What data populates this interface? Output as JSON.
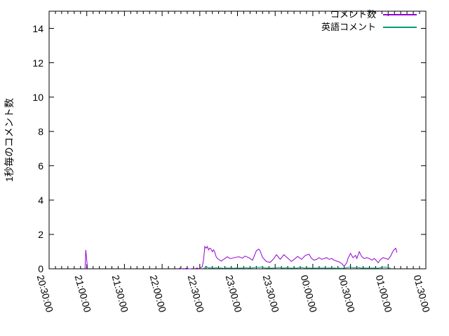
{
  "chart_data": {
    "type": "line",
    "title": "",
    "xlabel": "",
    "ylabel": "1秒毎のコメント数",
    "ylim": [
      0,
      15
    ],
    "y_tick_labels": [
      "0",
      "2",
      "4",
      "6",
      "8",
      "10",
      "12",
      "14"
    ],
    "y_tick_step": 2,
    "x_tick_labels": [
      "20:30:00",
      "21:00:00",
      "21:30:00",
      "22:00:00",
      "22:30:00",
      "23:00:00",
      "23:30:00",
      "00:00:00",
      "00:30:00",
      "01:00:00",
      "01:30:00"
    ],
    "x_axis": {
      "total_minutes": 300,
      "major_step_minutes": 30,
      "minor_step_minutes": 5,
      "start_label": "20:30:00",
      "end_label": "01:30:00"
    },
    "grid": false,
    "legend": {
      "position": "top-right",
      "entries": [
        "コメント数",
        "英語コメント"
      ]
    },
    "axis_color": "#000000",
    "background_color": "#ffffff",
    "series": [
      {
        "name": "コメント数",
        "color": "#9400d3",
        "x_unit": "minutes_since_20:30",
        "segments": [
          [
            [
              28.6,
              0
            ],
            [
              29.2,
              1.1
            ],
            [
              30.6,
              0
            ]
          ],
          [
            [
              103,
              0
            ],
            [
              104,
              0.05
            ],
            [
              105,
              0
            ],
            [
              106,
              0
            ]
          ],
          [
            [
              108,
              0
            ],
            [
              110,
              0.05
            ],
            [
              111,
              0
            ],
            [
              113,
              0
            ]
          ],
          [
            [
              116,
              0
            ],
            [
              118,
              0.05
            ],
            [
              119,
              0
            ],
            [
              120,
              0.05
            ],
            [
              121,
              0.08
            ],
            [
              122,
              0.12
            ],
            [
              123,
              0.55
            ],
            [
              124,
              1.3
            ],
            [
              125,
              1.2
            ],
            [
              126,
              1.3
            ],
            [
              127,
              1.1
            ],
            [
              128,
              1.2
            ],
            [
              129,
              1.15
            ],
            [
              130,
              1.0
            ],
            [
              131,
              1.1
            ],
            [
              132,
              0.95
            ],
            [
              133,
              0.7
            ],
            [
              134,
              0.6
            ],
            [
              135,
              0.55
            ],
            [
              136,
              0.5
            ],
            [
              137,
              0.45
            ],
            [
              138,
              0.5
            ],
            [
              139,
              0.55
            ],
            [
              140,
              0.6
            ],
            [
              141,
              0.65
            ],
            [
              142,
              0.7
            ],
            [
              143,
              0.65
            ],
            [
              144,
              0.6
            ],
            [
              145,
              0.6
            ],
            [
              148,
              0.66
            ],
            [
              151,
              0.7
            ],
            [
              154,
              0.62
            ],
            [
              156,
              0.74
            ],
            [
              159,
              0.65
            ],
            [
              162,
              0.5
            ],
            [
              165,
              1.05
            ],
            [
              167,
              1.15
            ],
            [
              168,
              1.05
            ],
            [
              170,
              0.66
            ],
            [
              173,
              0.43
            ],
            [
              176,
              0.37
            ],
            [
              179,
              0.6
            ],
            [
              181,
              0.82
            ],
            [
              184,
              0.55
            ],
            [
              187,
              0.82
            ],
            [
              190,
              0.62
            ],
            [
              193,
              0.43
            ],
            [
              196,
              0.6
            ],
            [
              198,
              0.72
            ],
            [
              201,
              0.55
            ],
            [
              204,
              0.78
            ],
            [
              207,
              0.85
            ],
            [
              209,
              0.6
            ],
            [
              211,
              0.5
            ],
            [
              213,
              0.55
            ],
            [
              215,
              0.65
            ],
            [
              217,
              0.55
            ],
            [
              219,
              0.6
            ],
            [
              221,
              0.65
            ],
            [
              223,
              0.55
            ],
            [
              225,
              0.6
            ],
            [
              227,
              0.5
            ],
            [
              229,
              0.45
            ],
            [
              231,
              0.4
            ],
            [
              233,
              0.3
            ],
            [
              235,
              0.15
            ],
            [
              237,
              0.35
            ],
            [
              238,
              0.6
            ],
            [
              240,
              0.9
            ],
            [
              242,
              0.65
            ],
            [
              244,
              0.78
            ],
            [
              245,
              0.6
            ],
            [
              247,
              1.0
            ],
            [
              249,
              0.7
            ],
            [
              251,
              0.6
            ],
            [
              253,
              0.65
            ],
            [
              255,
              0.6
            ],
            [
              257,
              0.5
            ],
            [
              259,
              0.6
            ],
            [
              261,
              0.45
            ],
            [
              262,
              0.35
            ],
            [
              264,
              0.55
            ],
            [
              266,
              0.65
            ],
            [
              268,
              0.6
            ],
            [
              270,
              0.55
            ],
            [
              272,
              0.75
            ],
            [
              274,
              1.05
            ],
            [
              276,
              1.2
            ],
            [
              277,
              0.95
            ]
          ]
        ]
      },
      {
        "name": "英語コメント",
        "color": "#009e73",
        "x_unit": "minutes_since_20:30",
        "segments": [
          [
            [
              123,
              0.02
            ],
            [
              124,
              0.08
            ],
            [
              125,
              0.15
            ],
            [
              126,
              0.1
            ],
            [
              127,
              0.05
            ],
            [
              129,
              0.06
            ],
            [
              131,
              0.04
            ],
            [
              133,
              0.06
            ],
            [
              135,
              0.04
            ],
            [
              137,
              0.05
            ],
            [
              139,
              0.03
            ],
            [
              141,
              0.05
            ],
            [
              143,
              0.04
            ],
            [
              145,
              0.05
            ],
            [
              147,
              0.03
            ],
            [
              149,
              0.05
            ],
            [
              151,
              0.04
            ],
            [
              153,
              0.05
            ],
            [
              155,
              0.04
            ],
            [
              157,
              0.06
            ],
            [
              159,
              0.04
            ],
            [
              161,
              0.05
            ],
            [
              163,
              0.06
            ],
            [
              165,
              0.1
            ],
            [
              167,
              0.08
            ],
            [
              169,
              0.1
            ],
            [
              171,
              0.06
            ],
            [
              173,
              0.04
            ],
            [
              175,
              0.05
            ],
            [
              177,
              0.04
            ],
            [
              179,
              0.05
            ],
            [
              181,
              0.06
            ],
            [
              183,
              0.08
            ],
            [
              185,
              0.05
            ],
            [
              187,
              0.04
            ],
            [
              189,
              0.06
            ],
            [
              191,
              0.05
            ],
            [
              193,
              0.04
            ],
            [
              195,
              0.05
            ],
            [
              197,
              0.04
            ],
            [
              199,
              0.06
            ],
            [
              201,
              0.08
            ],
            [
              203,
              0.05
            ],
            [
              205,
              0.04
            ],
            [
              207,
              0.05
            ],
            [
              209,
              0.04
            ],
            [
              211,
              0.05
            ],
            [
              213,
              0.04
            ],
            [
              215,
              0.06
            ],
            [
              217,
              0.04
            ],
            [
              219,
              0.05
            ],
            [
              221,
              0.04
            ],
            [
              223,
              0.05
            ],
            [
              225,
              0.04
            ],
            [
              227,
              0.05
            ],
            [
              229,
              0.03
            ],
            [
              231,
              0.04
            ],
            [
              233,
              0.03
            ],
            [
              235,
              0.04
            ],
            [
              237,
              0.06
            ],
            [
              239,
              0.1
            ],
            [
              240,
              0.12
            ],
            [
              241,
              0.08
            ],
            [
              243,
              0.06
            ],
            [
              245,
              0.08
            ],
            [
              247,
              0.06
            ],
            [
              249,
              0.04
            ],
            [
              251,
              0.05
            ],
            [
              253,
              0.04
            ],
            [
              255,
              0.05
            ],
            [
              257,
              0.04
            ],
            [
              259,
              0.05
            ],
            [
              261,
              0.04
            ],
            [
              263,
              0.05
            ],
            [
              265,
              0.08
            ],
            [
              267,
              0.1
            ],
            [
              269,
              0.08
            ],
            [
              271,
              0.05
            ],
            [
              272,
              0.03
            ]
          ]
        ]
      }
    ]
  }
}
